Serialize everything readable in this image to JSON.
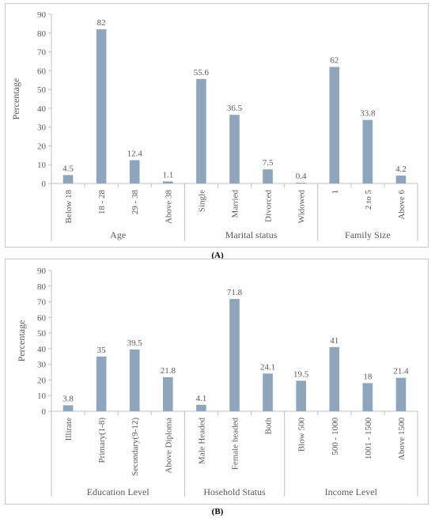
{
  "colors": {
    "bar": "#8FA5BB",
    "axis": "#c0c0c0",
    "grid": "#d9d9d9",
    "text": "#595959"
  },
  "chart_data": [
    {
      "type": "bar",
      "caption": "(A)",
      "ylabel": "Percentage",
      "ylim": [
        0,
        90
      ],
      "yticks": [
        0,
        10,
        20,
        30,
        40,
        50,
        60,
        70,
        80,
        90
      ],
      "grid": false,
      "groups": [
        {
          "name": "Age",
          "categories": [
            "Below 18",
            "18 - 28",
            "29 - 38",
            "Above 38"
          ],
          "values": [
            4.5,
            82,
            12.4,
            1.1
          ],
          "labels": [
            "4.5",
            "82",
            "12.4",
            "1.1"
          ]
        },
        {
          "name": "Marital status",
          "categories": [
            "Single",
            "Married",
            "Divorced",
            "Widowed"
          ],
          "values": [
            55.6,
            36.5,
            7.5,
            0.4
          ],
          "labels": [
            "55.6",
            "36.5",
            "7.5",
            "0.4"
          ]
        },
        {
          "name": "Family Size",
          "categories": [
            "1",
            "2 to 5",
            "Above 6"
          ],
          "values": [
            62,
            33.8,
            4.2
          ],
          "labels": [
            "62",
            "33.8",
            "4.2"
          ]
        }
      ]
    },
    {
      "type": "bar",
      "caption": "(B)",
      "ylabel": "Percentage",
      "ylim": [
        0,
        90
      ],
      "yticks": [
        0,
        10,
        20,
        30,
        40,
        50,
        60,
        70,
        80,
        90
      ],
      "grid": false,
      "groups": [
        {
          "name": "Education Level",
          "categories": [
            "Illirate",
            "Primary(1-8)",
            "Secondary(9-12)",
            "Above Diploma"
          ],
          "values": [
            3.8,
            35,
            39.5,
            21.8
          ],
          "labels": [
            "3.8",
            "35",
            "39.5",
            "21.8"
          ]
        },
        {
          "name": "Hosehold Status",
          "categories": [
            "Male Headed",
            "Female headed",
            "Both"
          ],
          "values": [
            4.1,
            71.8,
            24.1
          ],
          "labels": [
            "4.1",
            "71.8",
            "24.1"
          ]
        },
        {
          "name": "Income Level",
          "categories": [
            "Blow 500",
            "500 - 1000",
            "1001 - 1500",
            "Above 1500"
          ],
          "values": [
            19.5,
            41,
            18,
            21.4
          ],
          "labels": [
            "19.5",
            "41",
            "18",
            "21.4"
          ]
        }
      ]
    }
  ]
}
